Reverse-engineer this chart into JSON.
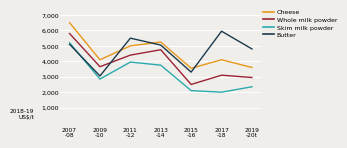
{
  "x_labels": [
    "2007\n-08",
    "2009\n-10",
    "2011\n-12",
    "2013\n-14",
    "2015\n-16",
    "2017\n-18",
    "2019\n-20t"
  ],
  "x_positions": [
    0,
    1,
    2,
    3,
    4,
    5,
    6
  ],
  "cheese": [
    6500,
    4100,
    5000,
    5250,
    3550,
    4100,
    3600
  ],
  "whole_milk_powder": [
    5800,
    3650,
    4400,
    4750,
    2500,
    3100,
    2950
  ],
  "skim_milk_powder": [
    5200,
    2850,
    3950,
    3750,
    2100,
    2000,
    2350
  ],
  "butter": [
    5100,
    3050,
    5500,
    5050,
    3300,
    5950,
    4800
  ],
  "cheese_color": "#E8981C",
  "wmp_color": "#9B2335",
  "smp_color": "#2BAAAD",
  "butter_color": "#1B3A4B",
  "ylim": [
    0,
    7000
  ],
  "yticks": [
    1000,
    2000,
    3000,
    4000,
    5000,
    6000,
    7000
  ],
  "ylabel": "2018-19\nUS$/t",
  "legend_labels": [
    "Cheese",
    "Whole milk powder",
    "Skim milk powder",
    "Butter"
  ],
  "bg_color": "#f0eeea"
}
